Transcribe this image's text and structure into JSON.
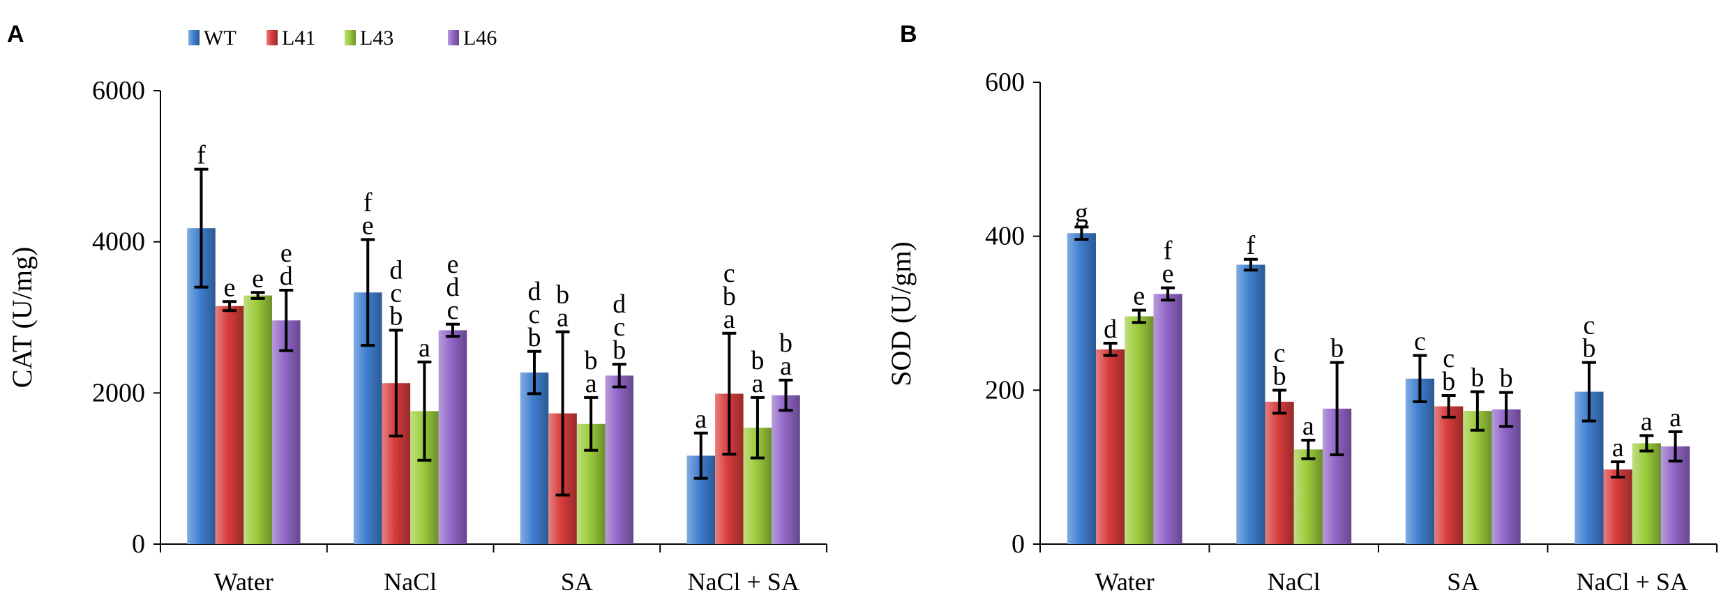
{
  "legend": [
    {
      "label": "WT",
      "color": "#3f7fd0"
    },
    {
      "label": "L41",
      "color": "#d83c3c"
    },
    {
      "label": "L43",
      "color": "#9ccc3c"
    },
    {
      "label": "L46",
      "color": "#9166c8"
    }
  ],
  "chart_data": [
    {
      "type": "bar",
      "panel": "A",
      "title": "",
      "ylabel": "CAT (U/mg)",
      "xlabel": "",
      "ylim": [
        0,
        6000
      ],
      "yticks": [
        "0",
        "2000",
        "4000",
        "6000"
      ],
      "categories": [
        "Water",
        "NaCl",
        "SA",
        "NaCl + SA"
      ],
      "series": [
        {
          "name": "WT",
          "values": [
            4180,
            3330,
            2270,
            1170
          ],
          "errors": [
            780,
            700,
            280,
            300
          ],
          "letters": [
            [
              "f"
            ],
            [
              "f",
              "e"
            ],
            [
              "d",
              "c",
              "b"
            ],
            [
              "a"
            ]
          ]
        },
        {
          "name": "L41",
          "values": [
            3150,
            2130,
            1730,
            1990
          ],
          "errors": [
            60,
            700,
            1080,
            800
          ],
          "letters": [
            [
              "e"
            ],
            [
              "d",
              "c",
              "b"
            ],
            [
              "b",
              "a"
            ],
            [
              "c",
              "b",
              "a"
            ]
          ]
        },
        {
          "name": "L43",
          "values": [
            3290,
            1760,
            1590,
            1540
          ],
          "errors": [
            40,
            650,
            350,
            400
          ],
          "letters": [
            [
              "e"
            ],
            [
              "a"
            ],
            [
              "b",
              "a"
            ],
            [
              "b",
              "a"
            ]
          ]
        },
        {
          "name": "L46",
          "values": [
            2960,
            2830,
            2230,
            1970
          ],
          "errors": [
            400,
            80,
            150,
            200
          ],
          "letters": [
            [
              "e",
              "d"
            ],
            [
              "e",
              "d",
              "c"
            ],
            [
              "d",
              "c",
              "b"
            ],
            [
              "b",
              "a"
            ]
          ]
        }
      ]
    },
    {
      "type": "bar",
      "panel": "B",
      "title": "",
      "ylabel": "SOD (U/gm)",
      "xlabel": "",
      "ylim": [
        0,
        600
      ],
      "yticks": [
        "0",
        "200",
        "400",
        "600"
      ],
      "categories": [
        "Water",
        "NaCl",
        "SA",
        "NaCl + SA"
      ],
      "series": [
        {
          "name": "WT",
          "values": [
            404,
            363,
            215,
            198
          ],
          "errors": [
            8,
            7,
            30,
            38
          ],
          "letters": [
            [
              "g"
            ],
            [
              "f"
            ],
            [
              "c"
            ],
            [
              "c",
              "b"
            ]
          ]
        },
        {
          "name": "L41",
          "values": [
            253,
            185,
            179,
            97
          ],
          "errors": [
            8,
            15,
            14,
            10
          ],
          "letters": [
            [
              "d"
            ],
            [
              "c",
              "b"
            ],
            [
              "c",
              "b"
            ],
            [
              "a"
            ]
          ]
        },
        {
          "name": "L43",
          "values": [
            296,
            123,
            173,
            131
          ],
          "errors": [
            8,
            12,
            25,
            10
          ],
          "letters": [
            [
              "e"
            ],
            [
              "a"
            ],
            [
              "b"
            ],
            [
              "a"
            ]
          ]
        },
        {
          "name": "L46",
          "values": [
            325,
            176,
            175,
            127
          ],
          "errors": [
            8,
            60,
            22,
            19
          ],
          "letters": [
            [
              "f",
              "e"
            ],
            [
              "b"
            ],
            [
              "b"
            ],
            [
              "a"
            ]
          ]
        }
      ]
    }
  ]
}
